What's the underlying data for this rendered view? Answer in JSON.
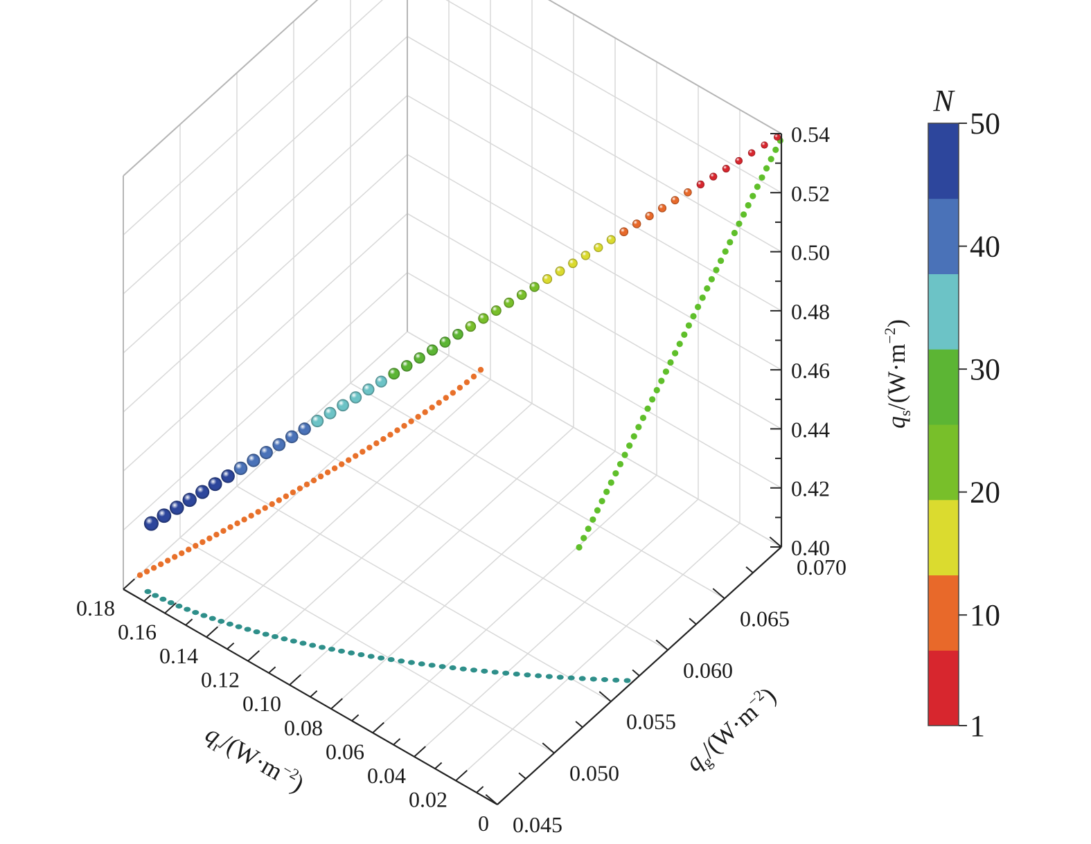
{
  "chart_data": {
    "type": "scatter3d",
    "axes": {
      "x": {
        "label_parts": [
          "q",
          "r",
          "/(W·m",
          "−2",
          ")"
        ],
        "range": [
          0,
          0.18
        ],
        "tick_labels": [
          "0",
          "0.02",
          "0.04",
          "0.06",
          "0.08",
          "0.10",
          "0.12",
          "0.14",
          "0.16",
          "0.18"
        ]
      },
      "y": {
        "label_parts": [
          "q",
          "g",
          "/(W·m",
          "−2",
          ")"
        ],
        "range": [
          0.045,
          0.07
        ],
        "tick_labels": [
          "0.045",
          "0.050",
          "0.055",
          "0.060",
          "0.065",
          "0.070"
        ]
      },
      "z": {
        "label_parts": [
          "q",
          "s",
          "/(W·m",
          "−2",
          ")"
        ],
        "range": [
          0.4,
          0.54
        ],
        "tick_labels": [
          "0.40",
          "0.42",
          "0.44",
          "0.46",
          "0.48",
          "0.50",
          "0.52",
          "0.54"
        ]
      }
    },
    "grid": true,
    "data_3d": {
      "N": [
        1,
        50
      ],
      "q_r": [
        0.002,
        0.172
      ],
      "q_g": [
        0.07,
        0.046
      ],
      "q_s": [
        0.538,
        0.422
      ]
    },
    "projections": {
      "q_r_q_s_plane": {
        "color": "#e8702a",
        "q_r": [
          0.008,
          0.172
        ],
        "q_s": [
          0.544,
          0.408
        ]
      },
      "q_g_q_s_plane": {
        "color": "#5fbf2a",
        "q_g": [
          0.0699,
          0.0522
        ],
        "q_s": [
          0.538,
          0.462
        ]
      },
      "q_r_q_g_plane": {
        "color": "#2e8f8a",
        "q_r": [
          0.002,
          0.172
        ],
        "q_g": [
          0.0568,
          0.0457
        ]
      }
    },
    "colorbar": {
      "title": "N",
      "tick_labels": [
        "1",
        "10",
        "20",
        "30",
        "40",
        "50"
      ],
      "colors": [
        "#d7262e",
        "#e8692a",
        "#dbdb2f",
        "#78bf2a",
        "#5cb534",
        "#6cc3c6",
        "#4a72b8",
        "#2d469c"
      ]
    }
  }
}
